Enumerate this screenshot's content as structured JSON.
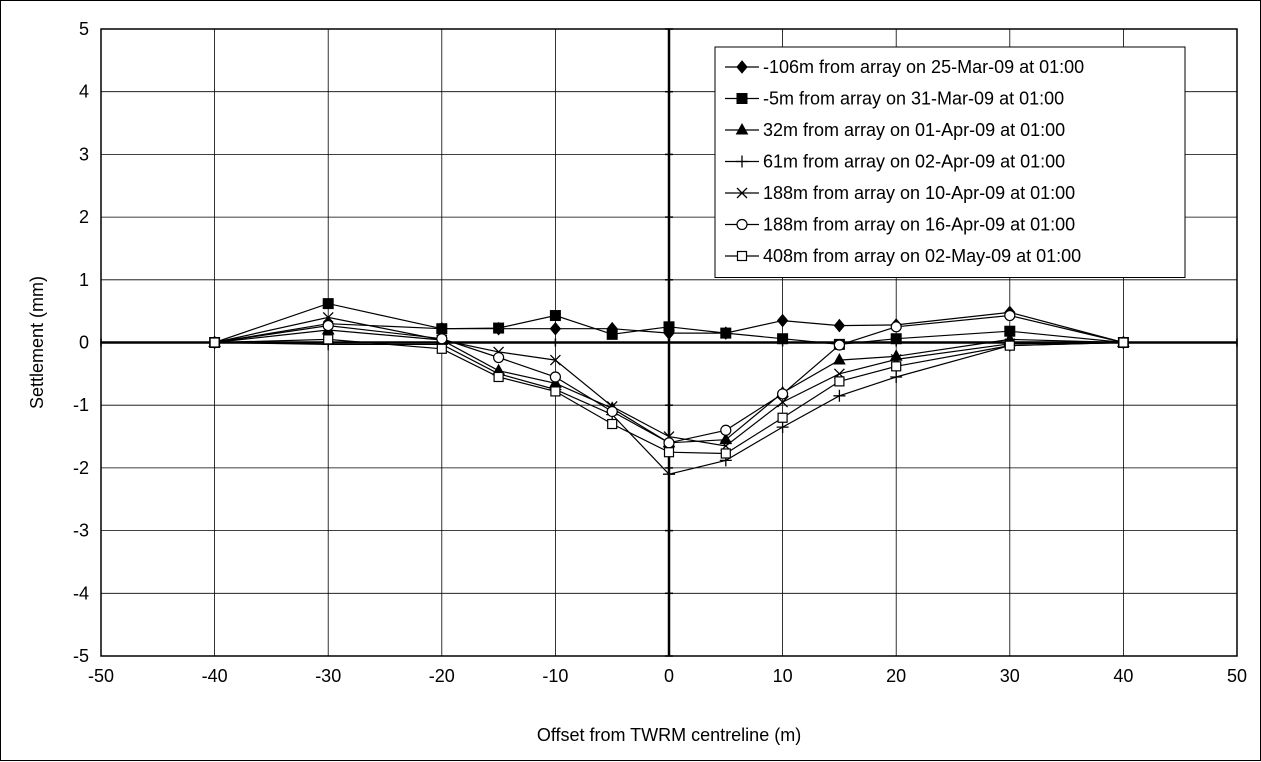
{
  "chart_data": {
    "type": "line",
    "title": "",
    "xlabel": "Offset from TWRM centreline (m)",
    "ylabel": "Settlement (mm)",
    "xlim": [
      -50,
      50
    ],
    "ylim": [
      -5,
      5
    ],
    "x_ticks": [
      -50,
      -40,
      -30,
      -20,
      -10,
      0,
      10,
      20,
      30,
      40,
      50
    ],
    "y_ticks": [
      -5,
      -4,
      -3,
      -2,
      -1,
      0,
      1,
      2,
      3,
      4,
      5
    ],
    "grid": true,
    "legend_position": "top-right",
    "series": [
      {
        "name": "-106m from array on 25-Mar-09 at 01:00",
        "marker": "diamond",
        "points": [
          [
            -40,
            0
          ],
          [
            -30,
            0.3
          ],
          [
            -20,
            0.22
          ],
          [
            -15,
            0.22
          ],
          [
            -10,
            0.22
          ],
          [
            -5,
            0.22
          ],
          [
            0,
            0.15
          ],
          [
            5,
            0.15
          ],
          [
            10,
            0.35
          ],
          [
            15,
            0.27
          ],
          [
            20,
            0.28
          ],
          [
            30,
            0.48
          ],
          [
            40,
            0
          ]
        ]
      },
      {
        "name": "-5m from array on 31-Mar-09 at 01:00",
        "marker": "square-filled",
        "points": [
          [
            -40,
            0
          ],
          [
            -30,
            0.62
          ],
          [
            -20,
            0.22
          ],
          [
            -15,
            0.23
          ],
          [
            -10,
            0.43
          ],
          [
            -5,
            0.13
          ],
          [
            0,
            0.25
          ],
          [
            5,
            0.15
          ],
          [
            10,
            0.06
          ],
          [
            15,
            -0.03
          ],
          [
            20,
            0.06
          ],
          [
            30,
            0.18
          ],
          [
            40,
            0
          ]
        ]
      },
      {
        "name": "32m from array on 01-Apr-09 at 01:00",
        "marker": "triangle",
        "points": [
          [
            -40,
            0
          ],
          [
            -30,
            0.2
          ],
          [
            -20,
            0.04
          ],
          [
            -15,
            -0.45
          ],
          [
            -10,
            -0.65
          ],
          [
            -5,
            -1.05
          ],
          [
            0,
            -1.6
          ],
          [
            5,
            -1.55
          ],
          [
            10,
            -0.8
          ],
          [
            15,
            -0.28
          ],
          [
            20,
            -0.22
          ],
          [
            30,
            0.05
          ],
          [
            40,
            0
          ]
        ]
      },
      {
        "name": "61m from array on 02-Apr-09 at 01:00",
        "marker": "plus",
        "points": [
          [
            -40,
            0
          ],
          [
            -30,
            -0.03
          ],
          [
            -20,
            -0.03
          ],
          [
            -15,
            -0.5
          ],
          [
            -10,
            -0.75
          ],
          [
            -5,
            -1.15
          ],
          [
            0,
            -2.1
          ],
          [
            5,
            -1.88
          ],
          [
            10,
            -1.35
          ],
          [
            15,
            -0.85
          ],
          [
            20,
            -0.55
          ],
          [
            30,
            -0.05
          ],
          [
            40,
            0
          ]
        ]
      },
      {
        "name": "188m from array on 10-Apr-09 at 01:00",
        "marker": "x",
        "points": [
          [
            -40,
            0
          ],
          [
            -30,
            0.4
          ],
          [
            -20,
            0.04
          ],
          [
            -15,
            -0.15
          ],
          [
            -10,
            -0.28
          ],
          [
            -5,
            -1.02
          ],
          [
            0,
            -1.5
          ],
          [
            5,
            -1.65
          ],
          [
            10,
            -0.95
          ],
          [
            15,
            -0.5
          ],
          [
            20,
            -0.27
          ],
          [
            30,
            -0.02
          ],
          [
            40,
            0
          ]
        ]
      },
      {
        "name": "188m from array on 16-Apr-09 at 01:00",
        "marker": "circle-open",
        "points": [
          [
            -40,
            0
          ],
          [
            -30,
            0.27
          ],
          [
            -20,
            0.06
          ],
          [
            -15,
            -0.24
          ],
          [
            -10,
            -0.55
          ],
          [
            -5,
            -1.1
          ],
          [
            0,
            -1.6
          ],
          [
            5,
            -1.4
          ],
          [
            10,
            -0.82
          ],
          [
            15,
            -0.04
          ],
          [
            20,
            0.25
          ],
          [
            30,
            0.43
          ],
          [
            40,
            0
          ]
        ]
      },
      {
        "name": "408m from array on 02-May-09 at 01:00",
        "marker": "square-open",
        "points": [
          [
            -40,
            0
          ],
          [
            -30,
            0.05
          ],
          [
            -20,
            -0.1
          ],
          [
            -15,
            -0.55
          ],
          [
            -10,
            -0.78
          ],
          [
            -5,
            -1.3
          ],
          [
            0,
            -1.75
          ],
          [
            5,
            -1.77
          ],
          [
            10,
            -1.2
          ],
          [
            15,
            -0.62
          ],
          [
            20,
            -0.38
          ],
          [
            30,
            -0.05
          ],
          [
            40,
            0
          ]
        ]
      }
    ]
  }
}
